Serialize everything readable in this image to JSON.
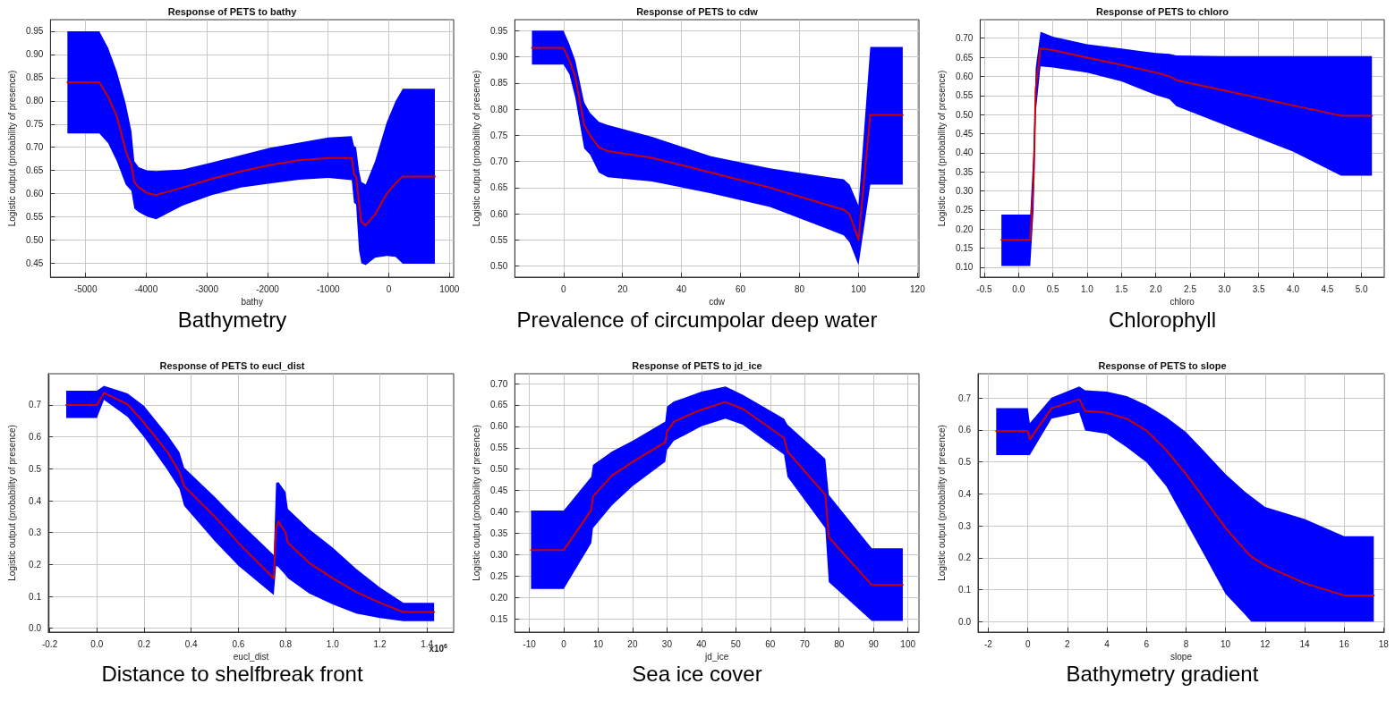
{
  "chart_data": [
    {
      "type": "line",
      "title": "Response of PETS to bathy",
      "xlabel": "bathy",
      "ylabel": "Logistic output (probability of presence)",
      "annotations": [
        "Bathymetry"
      ],
      "grid": true,
      "line_style": "solid",
      "xlim": [
        -5580,
        1070
      ],
      "xticks": [
        -5000,
        -4000,
        -3000,
        -2000,
        -1000,
        0,
        1000
      ],
      "ylim": [
        0.42,
        0.975
      ],
      "yticks": [
        0.45,
        {
          "value": 0.5,
          "label": "0.50"
        },
        0.55,
        {
          "value": 0.6,
          "label": "0.60"
        },
        0.65,
        {
          "value": 0.7,
          "label": "0.70"
        },
        0.75,
        {
          "value": 0.8,
          "label": "0.80"
        },
        0.85,
        {
          "value": 0.9,
          "label": "0.90"
        },
        0.95
      ],
      "series": [
        {
          "color": "#cc0000",
          "x": [
            -5300,
            -4774,
            -4630,
            -4485,
            -4340,
            -4245,
            -4196,
            -4124,
            -3980,
            -3835,
            -3402,
            -2921,
            -2440,
            -1959,
            -1477,
            -996,
            -611,
            -573,
            -539,
            -491,
            -452,
            -380,
            -226,
            -34,
            111,
            231,
            760
          ],
          "values": [
            0.84,
            0.84,
            0.809,
            0.767,
            0.693,
            0.661,
            0.625,
            0.614,
            0.601,
            0.597,
            0.613,
            0.632,
            0.648,
            0.662,
            0.672,
            0.677,
            0.677,
            0.641,
            0.637,
            0.58,
            0.539,
            0.532,
            0.555,
            0.6,
            0.622,
            0.637,
            0.637
          ],
          "upper": [
            0.95,
            0.95,
            0.915,
            0.863,
            0.795,
            0.735,
            0.67,
            0.657,
            0.65,
            0.649,
            0.652,
            0.667,
            0.683,
            0.699,
            0.71,
            0.721,
            0.724,
            0.703,
            0.7,
            0.65,
            0.625,
            0.62,
            0.67,
            0.754,
            0.799,
            0.826,
            0.826
          ],
          "lower": [
            0.73,
            0.73,
            0.709,
            0.67,
            0.62,
            0.606,
            0.568,
            0.56,
            0.55,
            0.545,
            0.574,
            0.597,
            0.613,
            0.622,
            0.63,
            0.634,
            0.629,
            0.58,
            0.577,
            0.478,
            0.45,
            0.446,
            0.462,
            0.466,
            0.464,
            0.449,
            0.449
          ]
        }
      ]
    },
    {
      "type": "line",
      "title": "Response of PETS to cdw",
      "xlabel": "cdw",
      "ylabel": "Logistic output (probability of presence)",
      "annotations": [
        "Prevalence of circumpolar deep water"
      ],
      "grid": true,
      "line_style": "solid",
      "xlim": [
        -16.5,
        120.5
      ],
      "xticks": [
        0,
        20,
        40,
        60,
        80,
        100,
        120
      ],
      "ylim": [
        0.479,
        0.971
      ],
      "yticks": [
        {
          "value": 0.5,
          "label": "0.50"
        },
        0.55,
        {
          "value": 0.6,
          "label": "0.60"
        },
        0.65,
        {
          "value": 0.7,
          "label": "0.70"
        },
        0.75,
        {
          "value": 0.8,
          "label": "0.80"
        },
        0.85,
        {
          "value": 0.9,
          "label": "0.90"
        },
        0.95
      ],
      "series": [
        {
          "color": "#cc0000",
          "x": [
            -10.7,
            0,
            2,
            4,
            7,
            9,
            12,
            15,
            30,
            50,
            70,
            90,
            95,
            97,
            100,
            104,
            115
          ],
          "values": [
            0.917,
            0.917,
            0.893,
            0.862,
            0.77,
            0.75,
            0.727,
            0.72,
            0.707,
            0.679,
            0.65,
            0.616,
            0.608,
            0.599,
            0.55,
            0.789,
            0.789
          ],
          "upper": [
            0.95,
            0.95,
            0.924,
            0.893,
            0.813,
            0.793,
            0.776,
            0.77,
            0.747,
            0.71,
            0.687,
            0.67,
            0.666,
            0.656,
            0.616,
            0.919,
            0.919
          ],
          "lower": [
            0.885,
            0.885,
            0.867,
            0.822,
            0.725,
            0.713,
            0.679,
            0.67,
            0.662,
            0.639,
            0.613,
            0.57,
            0.559,
            0.545,
            0.502,
            0.656,
            0.656
          ]
        }
      ]
    },
    {
      "type": "line",
      "title": "Response of PETS to chloro",
      "xlabel": "chloro",
      "ylabel": "Logistic output (probability of presence)",
      "annotations": [
        "Chlorophyll"
      ],
      "grid": true,
      "line_style": "solid",
      "xlim": [
        -0.56,
        5.33
      ],
      "xticks": [
        -0.5,
        {
          "value": 0,
          "label": "0.0"
        },
        0.5,
        {
          "value": 1,
          "label": "1.0"
        },
        1.5,
        {
          "value": 2,
          "label": "2.0"
        },
        2.5,
        {
          "value": 3,
          "label": "3.0"
        },
        3.5,
        {
          "value": 4,
          "label": "4.0"
        },
        4.5,
        {
          "value": 5,
          "label": "5.0"
        }
      ],
      "ylim": [
        0.074,
        0.7485
      ],
      "yticks": [
        {
          "value": 0.1,
          "label": "0.10"
        },
        0.15,
        {
          "value": 0.2,
          "label": "0.20"
        },
        0.25,
        {
          "value": 0.3,
          "label": "0.30"
        },
        0.35,
        {
          "value": 0.4,
          "label": "0.40"
        },
        0.45,
        {
          "value": 0.5,
          "label": "0.50"
        },
        0.55,
        {
          "value": 0.6,
          "label": "0.60"
        },
        0.65,
        {
          "value": 0.7,
          "label": "0.70"
        }
      ],
      "series": [
        {
          "color": "#cc0000",
          "x": [
            -0.25,
            0.17,
            0.22,
            0.25,
            0.32,
            0.5,
            1.0,
            1.5,
            2.0,
            2.2,
            2.3,
            3.0,
            4.0,
            4.7,
            5.15
          ],
          "values": [
            0.172,
            0.172,
            0.332,
            0.567,
            0.673,
            0.669,
            0.649,
            0.63,
            0.61,
            0.6,
            0.59,
            0.563,
            0.524,
            0.497,
            0.497
          ],
          "upper": [
            0.238,
            0.238,
            0.41,
            0.622,
            0.717,
            0.704,
            0.684,
            0.673,
            0.661,
            0.659,
            0.655,
            0.653,
            0.653,
            0.653,
            0.653
          ],
          "lower": [
            0.103,
            0.103,
            0.254,
            0.504,
            0.626,
            0.623,
            0.61,
            0.587,
            0.551,
            0.54,
            0.522,
            0.473,
            0.403,
            0.34,
            0.34
          ]
        }
      ]
    },
    {
      "type": "line",
      "title": "Response of PETS to eucl_dist",
      "xlabel": "eucl_dist",
      "ylabel": "Logistic output (probability of presence)",
      "annotations": [
        "x10$^{6}$",
        "Distance to shelfbreak front"
      ],
      "grid": true,
      "line_style": "solid",
      "xlim": [
        -0.206,
        1.513
      ],
      "xticks": [
        -0.2,
        {
          "value": 0,
          "label": "0.0"
        },
        0.2,
        0.4,
        0.6,
        0.8,
        {
          "value": 1,
          "label": "1.0"
        },
        1.2,
        1.4
      ],
      "ylim": [
        -0.012,
        0.798
      ],
      "yticks": [
        {
          "value": 0,
          "label": "0.0"
        },
        0.1,
        0.2,
        0.3,
        0.4,
        0.5,
        0.6,
        0.7
      ],
      "series": [
        {
          "color": "#cc0000",
          "x": [
            -0.13,
            0,
            0.03,
            0.13,
            0.2,
            0.3,
            0.35,
            0.37,
            0.5,
            0.6,
            0.75,
            0.76,
            0.77,
            0.8,
            0.81,
            0.9,
            1.0,
            1.1,
            1.2,
            1.3,
            1.43
          ],
          "values": [
            0.7,
            0.7,
            0.738,
            0.702,
            0.644,
            0.552,
            0.49,
            0.446,
            0.35,
            0.268,
            0.157,
            0.316,
            0.335,
            0.3,
            0.268,
            0.205,
            0.157,
            0.114,
            0.08,
            0.051,
            0.051
          ],
          "upper": [
            0.745,
            0.745,
            0.76,
            0.736,
            0.697,
            0.605,
            0.552,
            0.504,
            0.412,
            0.336,
            0.23,
            0.456,
            0.458,
            0.427,
            0.374,
            0.311,
            0.253,
            0.186,
            0.128,
            0.08,
            0.08
          ],
          "lower": [
            0.659,
            0.659,
            0.716,
            0.663,
            0.6,
            0.495,
            0.437,
            0.384,
            0.273,
            0.196,
            0.104,
            0.196,
            0.191,
            0.167,
            0.157,
            0.109,
            0.075,
            0.046,
            0.032,
            0.022,
            0.022
          ]
        }
      ]
    },
    {
      "type": "line",
      "title": "Response of PETS to jd_ice",
      "xlabel": "jd_ice",
      "ylabel": "Logistic output (probability of presence)",
      "annotations": [
        "Sea ice cover"
      ],
      "grid": true,
      "line_style": "solid",
      "xlim": [
        -14.2,
        103.2
      ],
      "xticks": [
        -10,
        0,
        10,
        20,
        30,
        40,
        50,
        60,
        70,
        80,
        90,
        100
      ],
      "ylim": [
        0.119,
        0.723
      ],
      "yticks": [
        0.15,
        {
          "value": 0.2,
          "label": "0.20"
        },
        0.25,
        {
          "value": 0.3,
          "label": "0.30"
        },
        0.35,
        {
          "value": 0.4,
          "label": "0.40"
        },
        0.45,
        {
          "value": 0.5,
          "label": "0.50"
        },
        0.55,
        {
          "value": 0.6,
          "label": "0.60"
        },
        0.65,
        {
          "value": 0.7,
          "label": "0.70"
        }
      ],
      "series": [
        {
          "color": "#cc0000",
          "x": [
            -9.5,
            0,
            8,
            8.5,
            14,
            20,
            29.5,
            30,
            32,
            40,
            47,
            52,
            64,
            65,
            76,
            77,
            89.5,
            98.5
          ],
          "values": [
            0.311,
            0.311,
            0.404,
            0.436,
            0.485,
            0.517,
            0.563,
            0.587,
            0.611,
            0.639,
            0.657,
            0.641,
            0.573,
            0.541,
            0.44,
            0.341,
            0.229,
            0.229
          ],
          "upper": [
            0.403,
            0.403,
            0.482,
            0.51,
            0.541,
            0.566,
            0.611,
            0.646,
            0.658,
            0.681,
            0.693,
            0.674,
            0.618,
            0.604,
            0.524,
            0.44,
            0.315,
            0.315
          ],
          "lower": [
            0.22,
            0.22,
            0.327,
            0.362,
            0.415,
            0.46,
            0.517,
            0.545,
            0.566,
            0.6,
            0.618,
            0.604,
            0.534,
            0.482,
            0.362,
            0.236,
            0.145,
            0.145
          ]
        }
      ]
    },
    {
      "type": "line",
      "title": "Response of PETS to slope",
      "xlabel": "slope",
      "ylabel": "Logistic output (probability of presence)",
      "annotations": [
        "Bathymetry gradient"
      ],
      "grid": true,
      "line_style": "solid",
      "xlim": [
        -2.52,
        18.03
      ],
      "xticks": [
        -2,
        0,
        2,
        4,
        6,
        8,
        10,
        12,
        14,
        16,
        18
      ],
      "ylim": [
        -0.033,
        0.776
      ],
      "yticks": [
        {
          "value": 0,
          "label": "0.0"
        },
        0.1,
        0.2,
        0.3,
        0.4,
        0.5,
        0.6,
        0.7
      ],
      "series": [
        {
          "color": "#cc0000",
          "x": [
            -1.6,
            0,
            0.1,
            1.2,
            2.6,
            2.9,
            4,
            5,
            6,
            7,
            8,
            9,
            10,
            11,
            11.3,
            12,
            14,
            16,
            17.5
          ],
          "values": [
            0.596,
            0.596,
            0.57,
            0.668,
            0.696,
            0.659,
            0.654,
            0.635,
            0.598,
            0.537,
            0.462,
            0.378,
            0.293,
            0.223,
            0.204,
            0.176,
            0.12,
            0.082,
            0.082
          ],
          "upper": [
            0.668,
            0.668,
            0.621,
            0.701,
            0.736,
            0.724,
            0.72,
            0.706,
            0.678,
            0.64,
            0.593,
            0.528,
            0.462,
            0.406,
            0.392,
            0.359,
            0.321,
            0.267,
            0.267
          ],
          "lower": [
            0.521,
            0.521,
            0.521,
            0.635,
            0.654,
            0.598,
            0.588,
            0.546,
            0.499,
            0.424,
            0.312,
            0.2,
            0.087,
            0.021,
            0,
            0,
            0,
            0,
            0
          ]
        }
      ]
    }
  ]
}
